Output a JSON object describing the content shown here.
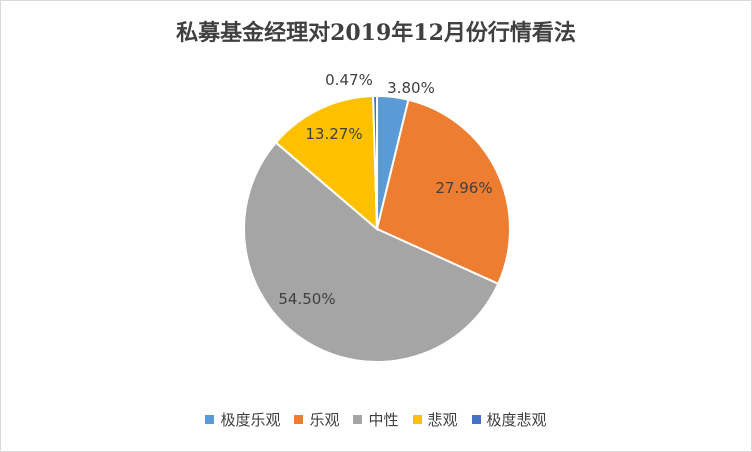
{
  "chart_data": {
    "type": "pie",
    "title": "私募基金经理对2019年12月份行情看法",
    "legend_position": "bottom",
    "slices": [
      {
        "name": "极度乐观",
        "value": 3.8,
        "label": "3.80%",
        "color": "#5b9bd5"
      },
      {
        "name": "乐观",
        "value": 27.96,
        "label": "27.96%",
        "color": "#ed7d31"
      },
      {
        "name": "中性",
        "value": 54.5,
        "label": "54.50%",
        "color": "#a5a5a5"
      },
      {
        "name": "悲观",
        "value": 13.27,
        "label": "13.27%",
        "color": "#ffc000"
      },
      {
        "name": "极度悲观",
        "value": 0.47,
        "label": "0.47%",
        "color": "#4472c4"
      }
    ]
  }
}
